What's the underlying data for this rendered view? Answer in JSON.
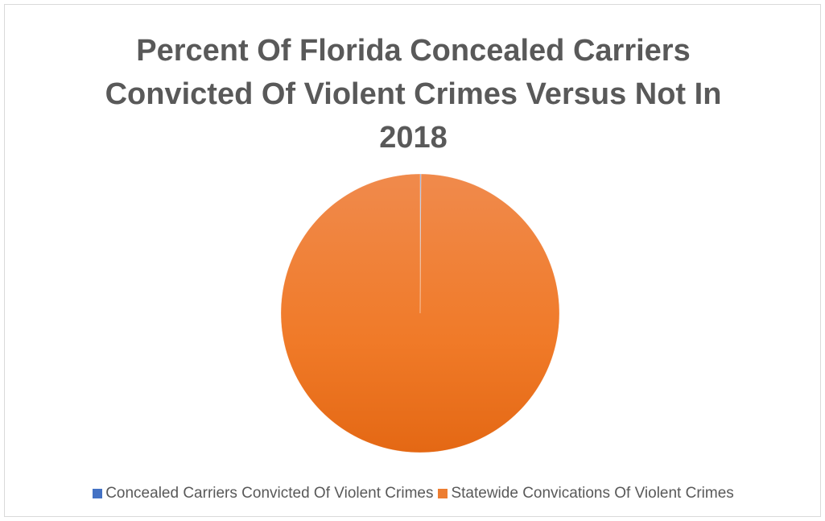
{
  "chart_data": {
    "type": "pie",
    "title": "Percent Of Florida Concealed Carriers Convicted Of Violent Crimes Versus Not In 2018",
    "categories": [
      "Concealed Carriers Convicted Of Violent Crimes",
      "Statewide Convications Of Violent Crimes"
    ],
    "values": [
      0.1,
      99.9
    ],
    "colors": [
      "#4472c4",
      "#ed7d31"
    ],
    "legend_position": "bottom"
  }
}
